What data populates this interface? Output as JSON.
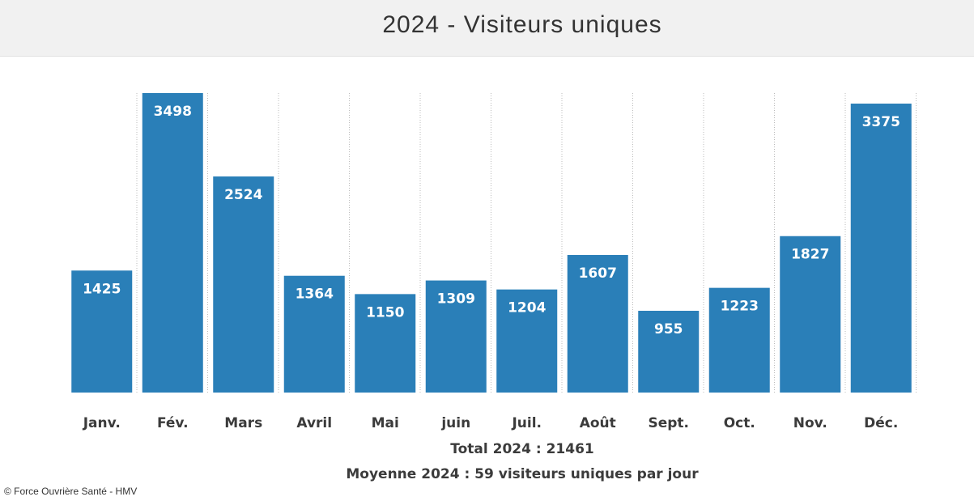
{
  "chart_data": {
    "type": "bar",
    "title": "2024 - Visiteurs uniques",
    "categories": [
      "Janv.",
      "Fév.",
      "Mars",
      "Avril",
      "Mai",
      "juin",
      "Juil.",
      "Août",
      "Sept.",
      "Oct.",
      "Nov.",
      "Déc."
    ],
    "values": [
      1425,
      3498,
      2524,
      1364,
      1150,
      1309,
      1204,
      1607,
      955,
      1223,
      1827,
      3375
    ],
    "xlabel": "",
    "ylabel": "",
    "ylim": [
      0,
      3498
    ],
    "grid": "vertical dotted",
    "bar_color": "#2a7fb8"
  },
  "notes": {
    "total": "Total 2024 : 21461",
    "average": "Moyenne 2024 : 59 visiteurs uniques par jour"
  },
  "credit": "© Force Ouvrière Santé - HMV"
}
